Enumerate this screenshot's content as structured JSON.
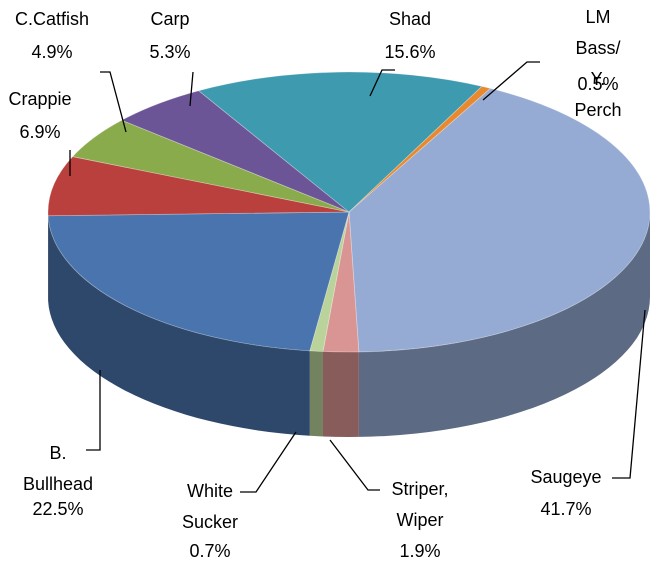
{
  "chart_data": {
    "type": "pie3d",
    "categories": [
      "Saugeye",
      "Striper,\nWiper",
      "White\nSucker",
      "B.\nBullhead",
      "Crappie",
      "C.Catfish",
      "Carp",
      "Shad",
      "LM Bass/\nY. Perch"
    ],
    "values": [
      41.7,
      1.9,
      0.7,
      22.5,
      6.9,
      4.9,
      5.3,
      15.6,
      0.5
    ],
    "value_labels": [
      "41.7%",
      "1.9%",
      "0.7%",
      "22.5%",
      "6.9%",
      "4.9%",
      "5.3%",
      "15.6%",
      "0.5%"
    ],
    "colors": [
      "#95abd3",
      "#d99593",
      "#b9d39a",
      "#4a74ad",
      "#b9403d",
      "#8aab4c",
      "#6c5596",
      "#3e9aae",
      "#e8892f"
    ]
  }
}
